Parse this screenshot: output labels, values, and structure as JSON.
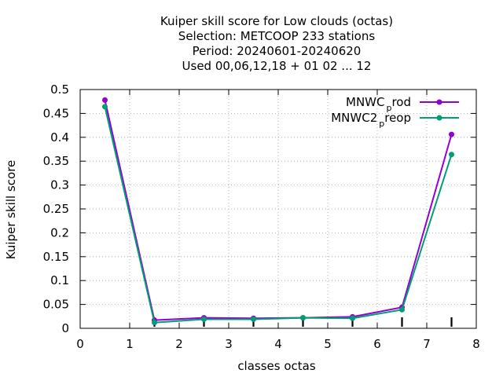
{
  "title_lines": [
    "Kuiper skill score  for Low clouds (octas)",
    "Selection: METCOOP    233 stations",
    "Period: 20240601-20240620",
    "Used  00,06,12,18 + 01 02 ... 12"
  ],
  "chart_data": {
    "type": "line",
    "xlabel": "classes octas",
    "ylabel": "Kuiper skill score",
    "xlim": [
      0,
      8
    ],
    "ylim": [
      0,
      0.5
    ],
    "xticks": [
      "0",
      "1",
      "2",
      "3",
      "4",
      "5",
      "6",
      "7",
      "8"
    ],
    "yticks": [
      "0",
      "0.05",
      "0.1",
      "0.15",
      "0.2",
      "0.25",
      "0.3",
      "0.35",
      "0.4",
      "0.45",
      "0.5"
    ],
    "grid": true,
    "legend_position": "top-right",
    "series": [
      {
        "name": "MNWC_prod",
        "legend_main": "MNWC",
        "legend_sub": "p",
        "legend_tail": "rod",
        "color": "#9400d3",
        "x": [
          0.5,
          1.5,
          2.5,
          3.5,
          4.5,
          5.5,
          6.5,
          7.5
        ],
        "values": [
          0.478,
          0.017,
          0.022,
          0.021,
          0.022,
          0.024,
          0.044,
          0.406
        ]
      },
      {
        "name": "MNWC2_preop",
        "legend_main": "MNWC2",
        "legend_sub": "p",
        "legend_tail": "reop",
        "color": "#009e73",
        "x": [
          0.5,
          1.5,
          2.5,
          3.5,
          4.5,
          5.5,
          6.5,
          7.5
        ],
        "values": [
          0.464,
          0.012,
          0.019,
          0.019,
          0.022,
          0.021,
          0.039,
          0.364
        ]
      }
    ],
    "marker_ticks_x": [
      1.5,
      2.5,
      3.5,
      4.5,
      5.5,
      6.5,
      7.5
    ]
  }
}
